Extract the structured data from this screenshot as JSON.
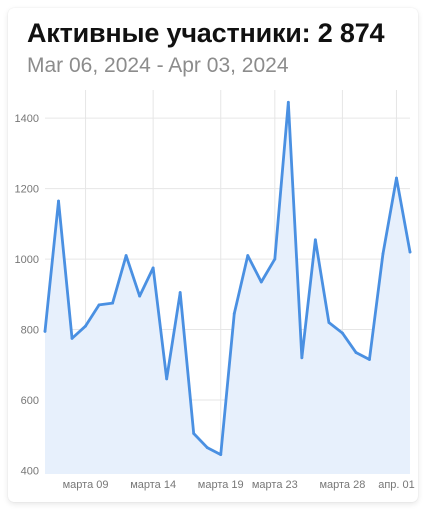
{
  "header": {
    "title": "Активные участники: 2 874",
    "subtitle": "Mar 06, 2024 - Apr 03, 2024"
  },
  "colors": {
    "line": "#4a90e2",
    "area": "#e7f0fc",
    "grid": "#e6e6e6"
  },
  "chart_data": {
    "type": "area",
    "title": "Активные участники: 2 874",
    "subtitle": "Mar 06, 2024 - Apr 03, 2024",
    "x": [
      "2024-03-06",
      "2024-03-07",
      "2024-03-08",
      "2024-03-09",
      "2024-03-10",
      "2024-03-11",
      "2024-03-12",
      "2024-03-13",
      "2024-03-14",
      "2024-03-15",
      "2024-03-16",
      "2024-03-17",
      "2024-03-18",
      "2024-03-19",
      "2024-03-20",
      "2024-03-21",
      "2024-03-22",
      "2024-03-23",
      "2024-03-24",
      "2024-03-25",
      "2024-03-26",
      "2024-03-27",
      "2024-03-28",
      "2024-03-29",
      "2024-03-30",
      "2024-03-31",
      "2024-04-01",
      "2024-04-02"
    ],
    "series": [
      {
        "values": [
          795,
          1165,
          775,
          810,
          870,
          875,
          1010,
          895,
          975,
          660,
          905,
          505,
          465,
          445,
          845,
          1010,
          935,
          1000,
          1445,
          720,
          1055,
          820,
          790,
          735,
          715,
          1015,
          1230,
          1020
        ]
      }
    ],
    "yticks": [
      400,
      600,
      800,
      1000,
      1200,
      1400
    ],
    "ylim": [
      390,
      1480
    ],
    "xticks": [
      {
        "x": "2024-03-09",
        "label": "марта 09"
      },
      {
        "x": "2024-03-14",
        "label": "марта 14"
      },
      {
        "x": "2024-03-19",
        "label": "марта 19"
      },
      {
        "x": "2024-03-23",
        "label": "марта 23"
      },
      {
        "x": "2024-03-28",
        "label": "марта 28"
      },
      {
        "x": "2024-04-01",
        "label": "апр. 01"
      }
    ],
    "grid": true,
    "legend": "none"
  }
}
